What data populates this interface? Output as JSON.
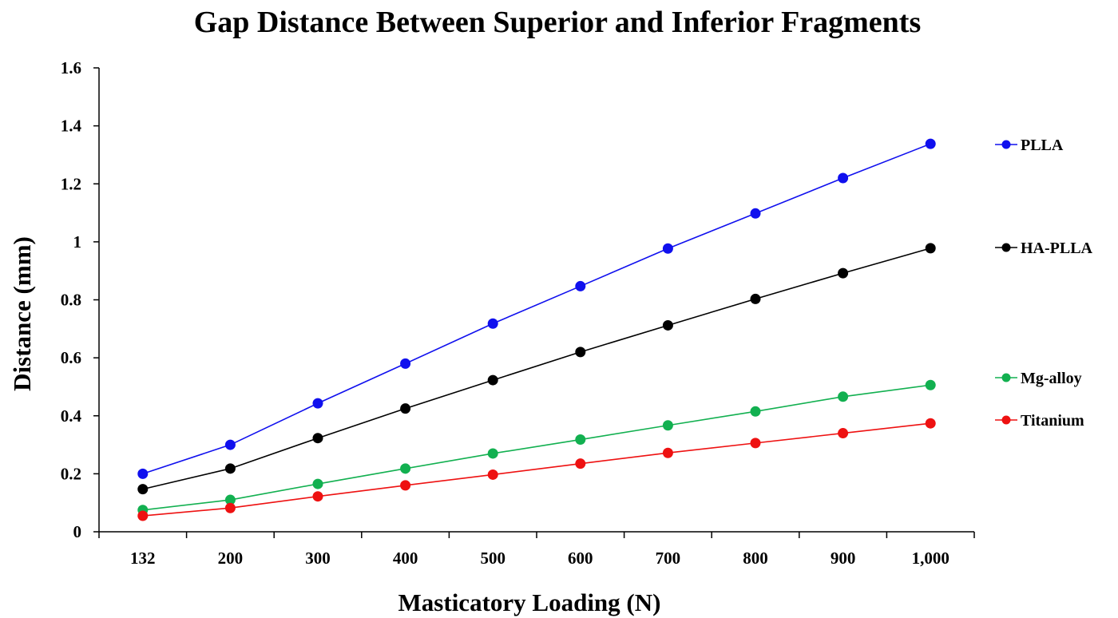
{
  "chart_data": {
    "type": "line",
    "title": "Gap Distance Between Superior and Inferior Fragments",
    "xlabel": "Masticatory Loading (N)",
    "ylabel": "Distance (mm)",
    "categories": [
      "132",
      "200",
      "300",
      "400",
      "500",
      "600",
      "700",
      "800",
      "900",
      "1,000"
    ],
    "ylim": [
      0,
      1.6
    ],
    "yticks": [
      "0",
      "0.2",
      "0.4",
      "0.6",
      "0.8",
      "1",
      "1.2",
      "1.4",
      "1.6"
    ],
    "grid": false,
    "legend_position": "right",
    "series": [
      {
        "name": "PLLA",
        "color": "#1010ee",
        "values": [
          0.2,
          0.3,
          0.443,
          0.58,
          0.718,
          0.847,
          0.977,
          1.098,
          1.22,
          1.338
        ]
      },
      {
        "name": "HA-PLLA",
        "color": "#000000",
        "values": [
          0.147,
          0.218,
          0.323,
          0.425,
          0.523,
          0.62,
          0.712,
          0.803,
          0.892,
          0.978
        ]
      },
      {
        "name": "Mg-alloy",
        "color": "#12b050",
        "values": [
          0.075,
          0.11,
          0.165,
          0.218,
          0.27,
          0.318,
          0.367,
          0.415,
          0.466,
          0.506
        ]
      },
      {
        "name": "Titanium",
        "color": "#ee1111",
        "values": [
          0.055,
          0.082,
          0.122,
          0.16,
          0.197,
          0.235,
          0.272,
          0.306,
          0.34,
          0.374
        ]
      }
    ]
  }
}
